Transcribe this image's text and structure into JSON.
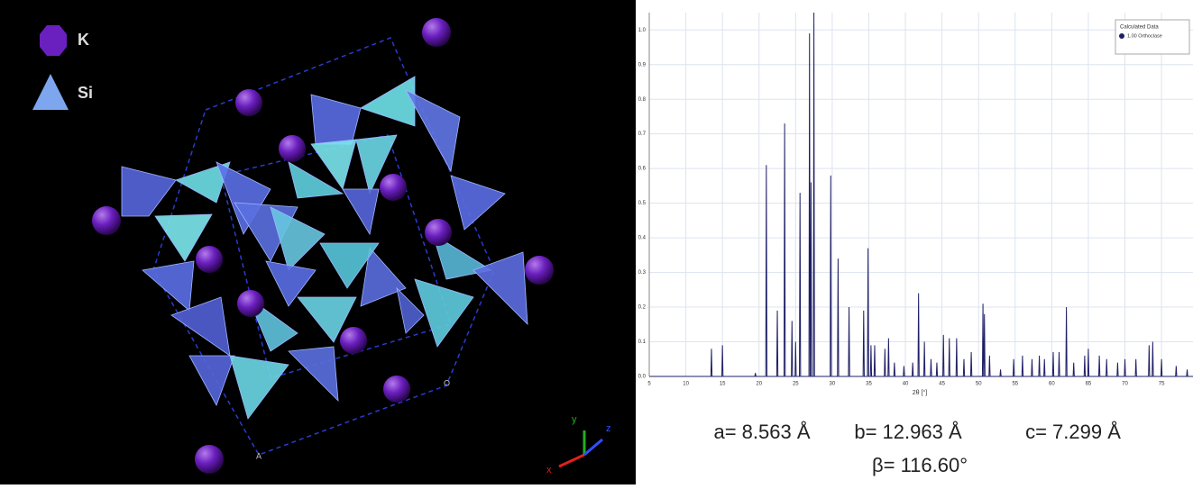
{
  "structure": {
    "legend": [
      "K",
      "Si"
    ],
    "cell_labels": [
      "A",
      "O"
    ],
    "axes": [
      "x",
      "y",
      "z"
    ]
  },
  "chart_data": {
    "type": "line",
    "x_label": "2θ [°]",
    "legend_title": "Calculated Data",
    "xlim": [
      5,
      79.3
    ],
    "ylim": [
      0,
      1.05
    ],
    "xticks": [
      5,
      10,
      15,
      20,
      25,
      30,
      35,
      40,
      45,
      50,
      55,
      60,
      65,
      70,
      75
    ],
    "yticks": [
      {
        "value": 0,
        "label": "0.0"
      },
      0.1,
      0.2,
      0.3,
      0.4,
      0.5,
      0.6,
      0.7,
      0.8,
      0.9,
      {
        "value": 1,
        "label": "1.0"
      }
    ],
    "grid": true,
    "legend_position": "upper right",
    "x": [
      5,
      13.42,
      13.5,
      13.58,
      14.92,
      15,
      15.08,
      19.42,
      19.5,
      19.58,
      20.92,
      21,
      21.08,
      22.42,
      22.5,
      22.58,
      23.42,
      23.5,
      23.58,
      24.42,
      24.5,
      24.58,
      24.92,
      25,
      25.08,
      25.52,
      25.6,
      25.68,
      26.82,
      26.9,
      26.98,
      27.02,
      27.1,
      27.18,
      27.42,
      27.5,
      27.58,
      29.72,
      29.8,
      29.88,
      30.72,
      30.8,
      30.88,
      32.22,
      32.3,
      32.38,
      34.22,
      34.3,
      34.38,
      34.82,
      34.9,
      34.98,
      35.22,
      35.3,
      35.38,
      35.72,
      35.8,
      35.88,
      37.12,
      37.2,
      37.28,
      37.62,
      37.7,
      37.78,
      38.42,
      38.5,
      38.58,
      39.72,
      39.8,
      39.88,
      40.92,
      41,
      41.08,
      41.72,
      41.8,
      41.88,
      42.52,
      42.6,
      42.68,
      43.42,
      43.5,
      43.58,
      44.22,
      44.3,
      44.38,
      45.12,
      45.2,
      45.28,
      45.92,
      46,
      46.08,
      46.92,
      47,
      47.08,
      47.92,
      48,
      48.08,
      48.92,
      49,
      49.08,
      50.52,
      50.6,
      50.68,
      50.72,
      50.8,
      50.88,
      51.42,
      51.5,
      51.58,
      52.92,
      53,
      53.08,
      54.72,
      54.8,
      54.88,
      55.92,
      56,
      56.08,
      57.22,
      57.3,
      57.38,
      58.22,
      58.3,
      58.38,
      58.92,
      59,
      59.08,
      60.12,
      60.2,
      60.28,
      60.92,
      61,
      61.08,
      61.92,
      62,
      62.08,
      62.92,
      63,
      63.08,
      64.42,
      64.5,
      64.58,
      64.92,
      65,
      65.08,
      66.42,
      66.5,
      66.58,
      67.42,
      67.5,
      67.58,
      68.92,
      69,
      69.08,
      69.92,
      70,
      70.08,
      71.42,
      71.5,
      71.58,
      73.22,
      73.3,
      73.38,
      73.72,
      73.8,
      73.88,
      74.92,
      75,
      75.08,
      76.92,
      77,
      77.08,
      78.42,
      78.5,
      78.58,
      79.3
    ],
    "series": [
      {
        "name": "1.00 Orthoclase",
        "color": "#1f1f66",
        "values": [
          0,
          0,
          0.08,
          0,
          0,
          0.09,
          0,
          0,
          0.01,
          0,
          0,
          0.61,
          0,
          0,
          0.19,
          0,
          0,
          0.73,
          0,
          0,
          0.16,
          0,
          0,
          0.1,
          0,
          0,
          0.53,
          0,
          0,
          0.99,
          0,
          0,
          0.56,
          0,
          0,
          1.05,
          0,
          0,
          0.58,
          0,
          0,
          0.34,
          0,
          0,
          0.2,
          0,
          0,
          0.19,
          0,
          0,
          0.37,
          0,
          0,
          0.09,
          0,
          0,
          0.09,
          0,
          0,
          0.08,
          0,
          0,
          0.11,
          0,
          0,
          0.04,
          0,
          0,
          0.03,
          0,
          0,
          0.04,
          0,
          0,
          0.24,
          0,
          0,
          0.1,
          0,
          0,
          0.05,
          0,
          0,
          0.04,
          0,
          0,
          0.12,
          0,
          0,
          0.11,
          0,
          0,
          0.11,
          0,
          0,
          0.05,
          0,
          0,
          0.07,
          0,
          0,
          0.21,
          0,
          0,
          0.18,
          0,
          0,
          0.06,
          0,
          0,
          0.02,
          0,
          0,
          0.05,
          0,
          0,
          0.06,
          0,
          0,
          0.05,
          0,
          0,
          0.06,
          0,
          0,
          0.05,
          0,
          0,
          0.07,
          0,
          0,
          0.07,
          0,
          0,
          0.2,
          0,
          0,
          0.04,
          0,
          0,
          0.06,
          0,
          0,
          0.08,
          0,
          0,
          0.06,
          0,
          0,
          0.05,
          0,
          0,
          0.04,
          0,
          0,
          0.05,
          0,
          0,
          0.05,
          0,
          0,
          0.09,
          0,
          0,
          0.1,
          0,
          0,
          0.05,
          0,
          0,
          0.03,
          0,
          0,
          0.02,
          0,
          0
        ]
      }
    ]
  },
  "lattice": {
    "line1": [
      "a= 8.563 Å",
      "b= 12.963 Å",
      "c= 7.299 Å"
    ],
    "line2": "β= 116.60°"
  }
}
